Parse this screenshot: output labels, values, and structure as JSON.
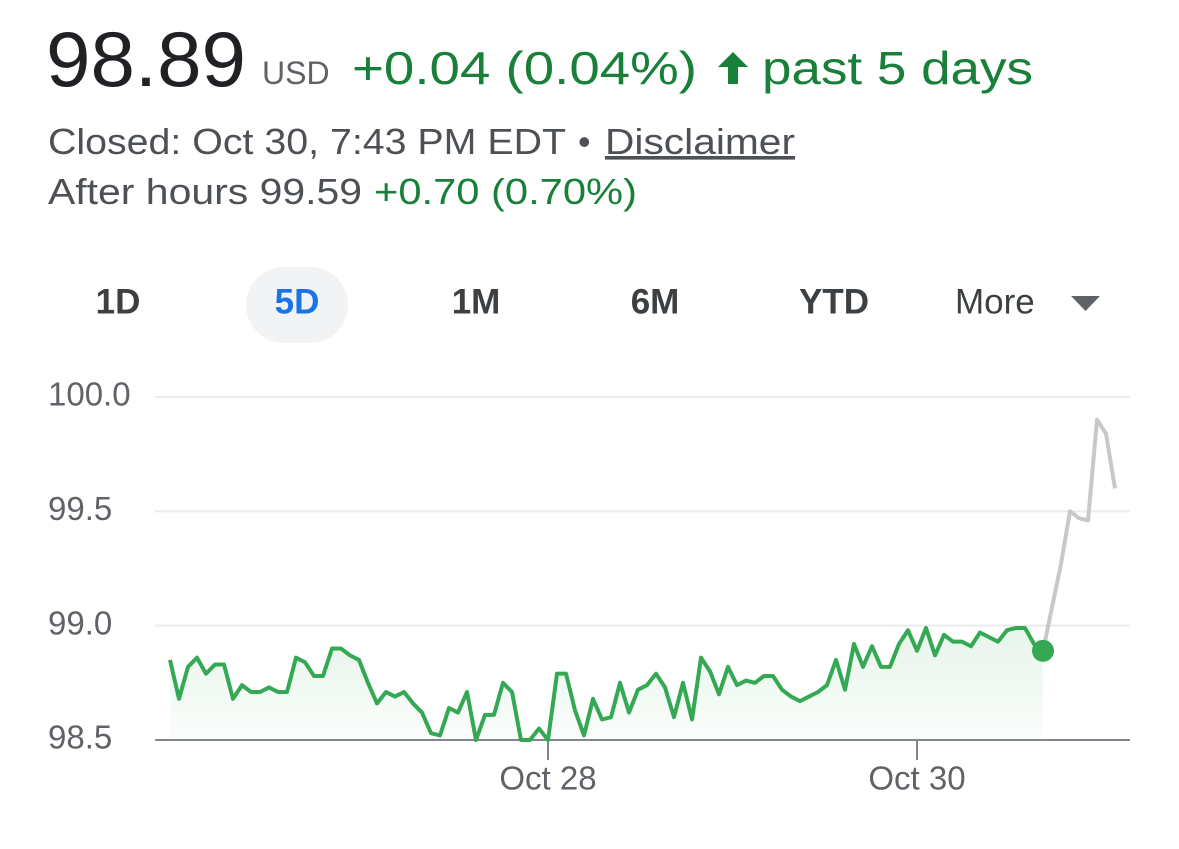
{
  "header": {
    "price": "98.89",
    "currency": "USD",
    "change": "+0.04 (0.04%)",
    "period": "past 5 days",
    "closed": "Closed: Oct 30, 7:43 PM EDT",
    "separator": "•",
    "disclaimer": "Disclaimer",
    "after_hours": "After hours 99.59",
    "after_hours_change": "+0.70 (0.70%)"
  },
  "tabs": {
    "items": [
      "1D",
      "5D",
      "1M",
      "6M",
      "YTD",
      "More"
    ],
    "selected": 1
  },
  "chart_data": {
    "type": "line",
    "categories": [
      null,
      null,
      null,
      null,
      null,
      null,
      null,
      null,
      null,
      null,
      null,
      null,
      null,
      null,
      null,
      null,
      null,
      null,
      null,
      null,
      null,
      null,
      null,
      null,
      null,
      null,
      null,
      null,
      null,
      null,
      null,
      null,
      null,
      null,
      null,
      null,
      null,
      null,
      null,
      null,
      null,
      null,
      "Oct 28",
      null,
      null,
      null,
      null,
      null,
      null,
      null,
      null,
      null,
      null,
      null,
      null,
      null,
      null,
      null,
      null,
      null,
      null,
      null,
      null,
      null,
      null,
      null,
      null,
      null,
      null,
      null,
      null,
      null,
      null,
      null,
      null,
      null,
      null,
      null,
      null,
      null,
      null,
      null,
      null,
      "Oct 30",
      null,
      null,
      null,
      null,
      null,
      null,
      null,
      null,
      null,
      null,
      null,
      null,
      null,
      null,
      null,
      null,
      null,
      null,
      null,
      null,
      null,
      null
    ],
    "series": [
      {
        "color": "#34a853",
        "values": [
          98.85,
          98.68,
          98.82,
          98.86,
          98.79,
          98.83,
          98.83,
          98.68,
          98.74,
          98.71,
          98.71,
          98.73,
          98.71,
          98.71,
          98.86,
          98.84,
          98.78,
          98.78,
          98.9,
          98.9,
          98.87,
          98.85,
          98.75,
          98.66,
          98.71,
          98.69,
          98.71,
          98.66,
          98.62,
          98.53,
          98.52,
          98.64,
          98.62,
          98.71,
          98.5,
          98.61,
          98.61,
          98.75,
          98.71,
          98.5,
          98.5,
          98.55,
          98.5,
          98.79,
          98.79,
          98.63,
          98.52,
          98.68,
          98.59,
          98.6,
          98.75,
          98.62,
          98.72,
          98.74,
          98.79,
          98.73,
          98.6,
          98.75,
          98.59,
          98.86,
          98.8,
          98.7,
          98.82,
          98.74,
          98.76,
          98.75,
          98.78,
          98.78,
          98.72,
          98.69,
          98.67,
          98.69,
          98.71,
          98.74,
          98.85,
          98.72,
          98.92,
          98.82,
          98.91,
          98.82,
          98.82,
          98.92,
          98.98,
          98.89,
          98.99,
          98.87,
          98.96,
          98.93,
          98.93,
          98.91,
          98.97,
          98.95,
          98.93,
          98.98,
          98.99,
          98.99,
          98.92,
          98.89,
          null,
          null,
          null,
          null,
          null,
          null,
          null,
          null
        ]
      },
      {
        "color": "#c8c8c8",
        "values": [
          null,
          null,
          null,
          null,
          null,
          null,
          null,
          null,
          null,
          null,
          null,
          null,
          null,
          null,
          null,
          null,
          null,
          null,
          null,
          null,
          null,
          null,
          null,
          null,
          null,
          null,
          null,
          null,
          null,
          null,
          null,
          null,
          null,
          null,
          null,
          null,
          null,
          null,
          null,
          null,
          null,
          null,
          null,
          null,
          null,
          null,
          null,
          null,
          null,
          null,
          null,
          null,
          null,
          null,
          null,
          null,
          null,
          null,
          null,
          null,
          null,
          null,
          null,
          null,
          null,
          null,
          null,
          null,
          null,
          null,
          null,
          null,
          null,
          null,
          null,
          null,
          null,
          null,
          null,
          null,
          null,
          null,
          null,
          null,
          null,
          null,
          null,
          null,
          null,
          null,
          null,
          null,
          null,
          null,
          null,
          null,
          null,
          98.89,
          99.08,
          99.27,
          99.5,
          99.47,
          99.46,
          99.9,
          99.84,
          99.6
        ]
      }
    ],
    "ylim": [
      98.5,
      100.0
    ],
    "yticks": [
      98.5,
      {
        "value": 99.0,
        "label": "99.0"
      },
      99.5,
      {
        "value": 100.0,
        "label": "100.0"
      }
    ],
    "grid": true
  }
}
